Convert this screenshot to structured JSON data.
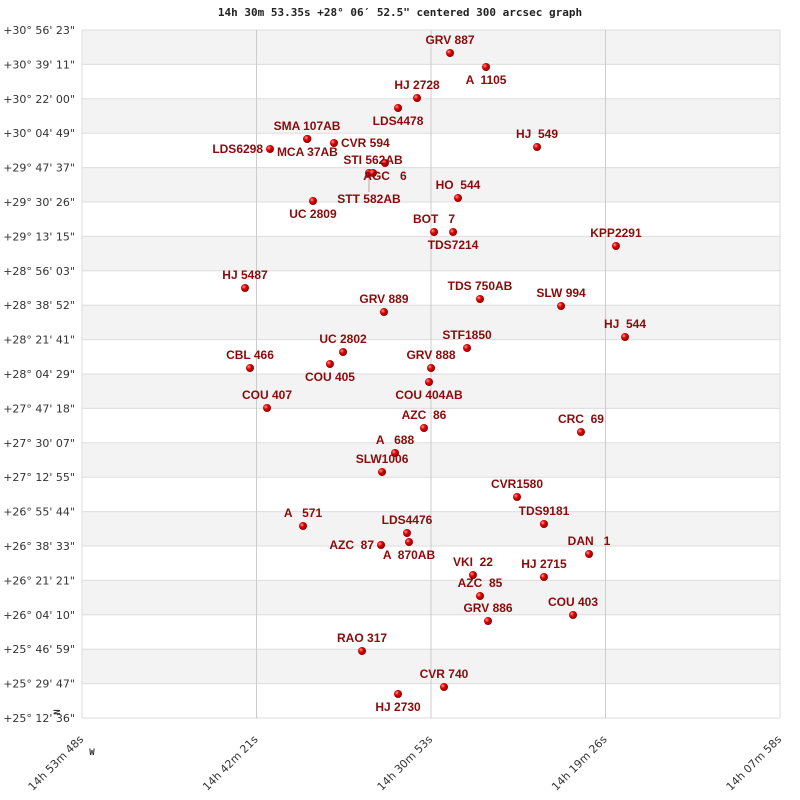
{
  "title": "14h 30m 53.35s +28° 06′ 52.5\" centered 300 arcsec graph",
  "chart_data": {
    "type": "scatter",
    "title": "14h 30m 53.35s +28° 06′ 52.5\" centered 300 arcsec graph",
    "xlabel": "",
    "ylabel": "",
    "x_quantity": "right ascension (hours)",
    "y_quantity": "declination (degrees)",
    "xlim_hours": [
      14.89667,
      14.13278
    ],
    "ylim_deg": [
      25.21,
      30.93972
    ],
    "x_reversed": true,
    "grid": true,
    "alternating_row_bands": true,
    "x_ticks": [
      "14h 53m 48s",
      "14h 42m 21s",
      "14h 30m 53s",
      "14h 19m 26s",
      "14h 07m 58s"
    ],
    "y_ticks": [
      "+30° 56' 23\"",
      "+30° 39' 11\"",
      "+30° 22' 00\"",
      "+30° 04' 49\"",
      "+29° 47' 37\"",
      "+29° 30' 26\"",
      "+29° 13' 15\"",
      "+28° 56' 03\"",
      "+28° 38' 52\"",
      "+28° 21' 41\"",
      "+28° 04' 29\"",
      "+27° 47' 18\"",
      "+27° 30' 07\"",
      "+27° 12' 55\"",
      "+26° 55' 44\"",
      "+26° 38' 33\"",
      "+26° 21' 21\"",
      "+26° 04' 10\"",
      "+25° 46' 59\"",
      "+25° 29' 47\"",
      "+25° 12' 36\""
    ],
    "north_label": "N",
    "west_label": "W",
    "marker_color": "#e00000",
    "label_color": "#8b0a0a",
    "points": [
      {
        "name": "GRV 887",
        "ra": 14.4939,
        "dec": 30.7482
      },
      {
        "name": "A  1105",
        "ra": 14.4545,
        "dec": 30.6316
      },
      {
        "name": "HJ 2728",
        "ra": 14.53,
        "dec": 30.3734
      },
      {
        "name": "LDS4478",
        "ra": 14.5508,
        "dec": 30.2901
      },
      {
        "name": "SMA 107AB",
        "ra": 14.6504,
        "dec": 30.032
      },
      {
        "name": "MCA 37AB",
        "ra": 14.65,
        "dec": 30.033
      },
      {
        "name": "CVR 594",
        "ra": 14.6209,
        "dec": 29.9986
      },
      {
        "name": "LDS6298",
        "ra": 14.6909,
        "dec": 29.9487
      },
      {
        "name": "HJ  549",
        "ra": 14.3987,
        "dec": 29.9653
      },
      {
        "name": "AGC   6",
        "ra": 14.5651,
        "dec": 29.8321
      },
      {
        "name": "STT 582AB",
        "ra": 14.5826,
        "dec": 29.7488
      },
      {
        "name": "STI 562AB",
        "ra": 14.5782,
        "dec": 29.7488
      },
      {
        "name": "UC 2809",
        "ra": 14.6439,
        "dec": 29.5156
      },
      {
        "name": "HO  544",
        "ra": 14.4852,
        "dec": 29.5406
      },
      {
        "name": "BOT   7",
        "ra": 14.5114,
        "dec": 29.2574
      },
      {
        "name": "TDS7214",
        "ra": 14.4906,
        "dec": 29.2574
      },
      {
        "name": "KPP2291",
        "ra": 14.3123,
        "dec": 29.1409
      },
      {
        "name": "HJ 5487",
        "ra": 14.7183,
        "dec": 28.7911
      },
      {
        "name": "TDS 750AB",
        "ra": 14.4611,
        "dec": 28.6995
      },
      {
        "name": "SLW 994",
        "ra": 14.3724,
        "dec": 28.6412
      },
      {
        "name": "GRV 889",
        "ra": 14.5662,
        "dec": 28.5912
      },
      {
        "name": "HJ  544",
        "ra": 14.3024,
        "dec": 28.383
      },
      {
        "name": "STF1850",
        "ra": 14.4753,
        "dec": 28.2914
      },
      {
        "name": "UC 2802",
        "ra": 14.611,
        "dec": 28.2581
      },
      {
        "name": "COU 405",
        "ra": 14.6253,
        "dec": 28.1581
      },
      {
        "name": "CBL 466",
        "ra": 14.7128,
        "dec": 28.1248
      },
      {
        "name": "GRV 888",
        "ra": 14.5147,
        "dec": 28.1248
      },
      {
        "name": "COU 404AB",
        "ra": 14.5169,
        "dec": 28.0082
      },
      {
        "name": "COU 407",
        "ra": 14.6942,
        "dec": 27.7917
      },
      {
        "name": "AZC  86",
        "ra": 14.5224,
        "dec": 27.6251
      },
      {
        "name": "CRC  69",
        "ra": 14.3506,
        "dec": 27.5918
      },
      {
        "name": "A   688",
        "ra": 14.5541,
        "dec": 27.4169
      },
      {
        "name": "SLW1006",
        "ra": 14.5683,
        "dec": 27.2587
      },
      {
        "name": "CVR1580",
        "ra": 14.4206,
        "dec": 27.0505
      },
      {
        "name": "TDS9181",
        "ra": 14.3911,
        "dec": 26.8256
      },
      {
        "name": "A   571",
        "ra": 14.6548,
        "dec": 26.809
      },
      {
        "name": "LDS4476",
        "ra": 14.541,
        "dec": 26.7507
      },
      {
        "name": "A  870AB",
        "ra": 14.5388,
        "dec": 26.6757
      },
      {
        "name": "AZC  87",
        "ra": 14.5694,
        "dec": 26.6508
      },
      {
        "name": "DAN   1",
        "ra": 14.3418,
        "dec": 26.5758
      },
      {
        "name": "VKI  22",
        "ra": 14.4688,
        "dec": 26.4009
      },
      {
        "name": "HJ 2715",
        "ra": 14.3911,
        "dec": 26.3842
      },
      {
        "name": "AZC  85",
        "ra": 14.4611,
        "dec": 26.226
      },
      {
        "name": "COU 403",
        "ra": 14.3593,
        "dec": 26.0678
      },
      {
        "name": "GRV 886",
        "ra": 14.4523,
        "dec": 26.0178
      },
      {
        "name": "RAO 317",
        "ra": 14.5902,
        "dec": 25.768
      },
      {
        "name": "CVR 740",
        "ra": 14.5005,
        "dec": 25.4682
      },
      {
        "name": "HJ 2730",
        "ra": 14.5508,
        "dec": 25.4099
      }
    ]
  }
}
